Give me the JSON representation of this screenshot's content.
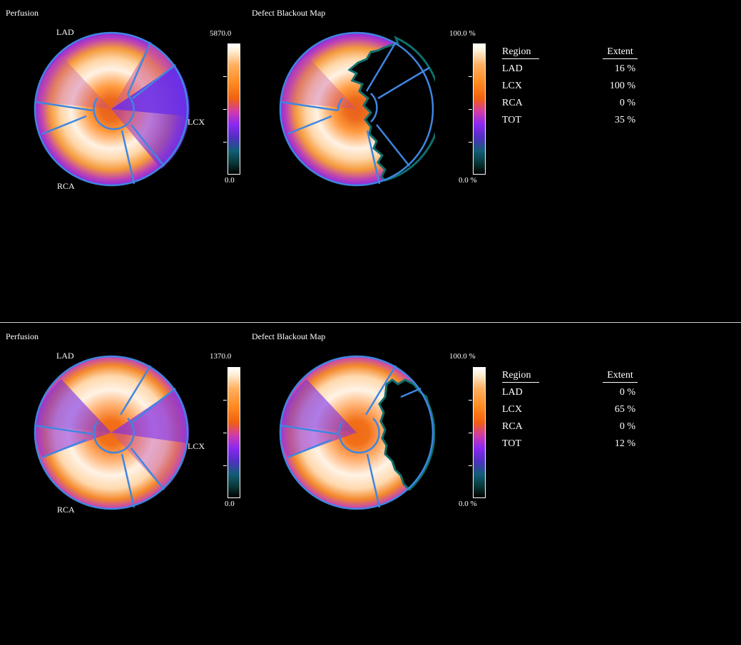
{
  "panels": [
    {
      "perfusion_title": "Perfusion",
      "defect_title": "Defect Blackout Map",
      "labels": {
        "lad": "LAD",
        "lcx": "LCX",
        "rca": "RCA"
      },
      "perfusion_scale": {
        "max": "5870.0",
        "min": "0.0"
      },
      "defect_scale": {
        "max": "100.0 %",
        "min": "0.0 %"
      },
      "table": {
        "col_region": "Region",
        "col_extent": "Extent",
        "rows": [
          {
            "region": "LAD",
            "extent": "16 %"
          },
          {
            "region": "LCX",
            "extent": "100 %"
          },
          {
            "region": "RCA",
            "extent": "0 %"
          },
          {
            "region": "TOT",
            "extent": "35 %"
          }
        ]
      },
      "defect_extent_fraction_lcx": 1.0
    },
    {
      "perfusion_title": "Perfusion",
      "defect_title": "Defect Blackout Map",
      "labels": {
        "lad": "LAD",
        "lcx": "LCX",
        "rca": "RCA"
      },
      "perfusion_scale": {
        "max": "1370.0",
        "min": "0.0"
      },
      "defect_scale": {
        "max": "100.0 %",
        "min": "0.0 %"
      },
      "table": {
        "col_region": "Region",
        "col_extent": "Extent",
        "rows": [
          {
            "region": "LAD",
            "extent": "0 %"
          },
          {
            "region": "LCX",
            "extent": "65 %"
          },
          {
            "region": "RCA",
            "extent": "0 %"
          },
          {
            "region": "TOT",
            "extent": "12 %"
          }
        ]
      },
      "defect_extent_fraction_lcx": 0.65
    }
  ],
  "colors": {
    "border": "#3f86e0",
    "background": "#000000",
    "orange": "#f07418",
    "violet": "#7a2cf0"
  }
}
